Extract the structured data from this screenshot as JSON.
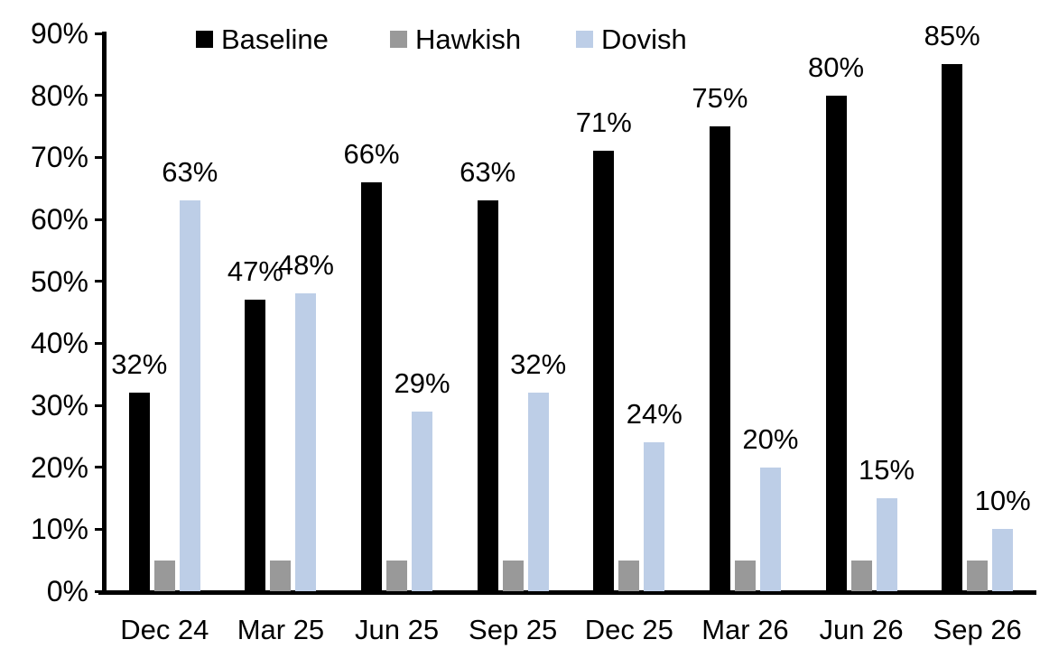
{
  "chart_data": {
    "type": "bar",
    "title": "",
    "categories": [
      "Dec 24",
      "Mar 25",
      "Jun 25",
      "Sep 25",
      "Dec 25",
      "Mar 26",
      "Jun 26",
      "Sep 26"
    ],
    "series": [
      {
        "name": "Baseline",
        "color": "#000000",
        "values": [
          32,
          47,
          66,
          63,
          71,
          75,
          80,
          85
        ],
        "show_labels": true
      },
      {
        "name": "Hawkish",
        "color": "#999999",
        "values": [
          5,
          5,
          5,
          5,
          5,
          5,
          5,
          5
        ],
        "show_labels": false
      },
      {
        "name": "Dovish",
        "color": "#BDCEE7",
        "values": [
          63,
          48,
          29,
          32,
          24,
          20,
          15,
          10
        ],
        "show_labels": true
      }
    ],
    "data_label_suffix": "%",
    "y_axis": {
      "min": 0,
      "max": 90,
      "step": 10,
      "tick_labels": [
        "0%",
        "10%",
        "20%",
        "30%",
        "40%",
        "50%",
        "60%",
        "70%",
        "80%",
        "90%"
      ]
    },
    "legend_position": "top",
    "grid": false,
    "colors": {
      "background": "#ffffff",
      "axis": "#000000",
      "text": "#000000"
    }
  }
}
